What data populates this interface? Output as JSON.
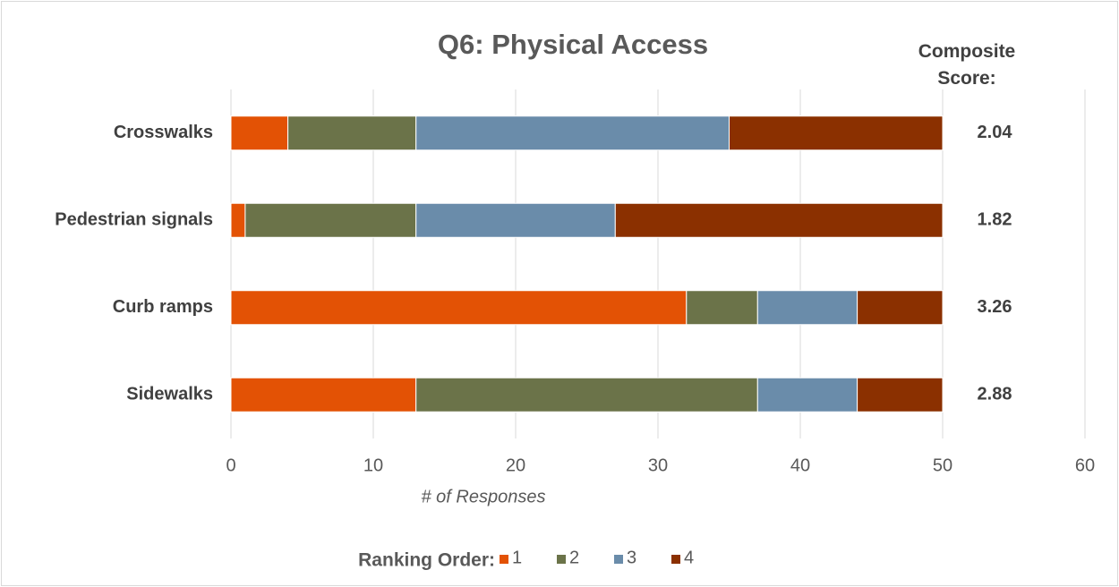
{
  "chart_data": {
    "type": "stacked_barh",
    "title": "Q6: Physical Access",
    "xlabel": "# of Responses",
    "categories": [
      "Crosswalks",
      "Pedestrian signals",
      "Curb ramps",
      "Sidewalks"
    ],
    "series": [
      {
        "name": "1",
        "color": "#e35205",
        "values": [
          4,
          1,
          32,
          13
        ]
      },
      {
        "name": "2",
        "color": "#6b7349",
        "values": [
          9,
          12,
          5,
          24
        ]
      },
      {
        "name": "3",
        "color": "#6a8caa",
        "values": [
          22,
          14,
          7,
          7
        ]
      },
      {
        "name": "4",
        "color": "#8b3000",
        "values": [
          15,
          23,
          6,
          6
        ]
      }
    ],
    "xlim": [
      0,
      60
    ],
    "xticks": [
      0,
      10,
      20,
      30,
      40,
      50,
      60
    ],
    "grid": true,
    "legend_title": "Ranking Order:",
    "legend": "bottom",
    "composite_label": "Composite Score:",
    "composite_scores": [
      2.04,
      1.82,
      3.26,
      2.88
    ]
  }
}
